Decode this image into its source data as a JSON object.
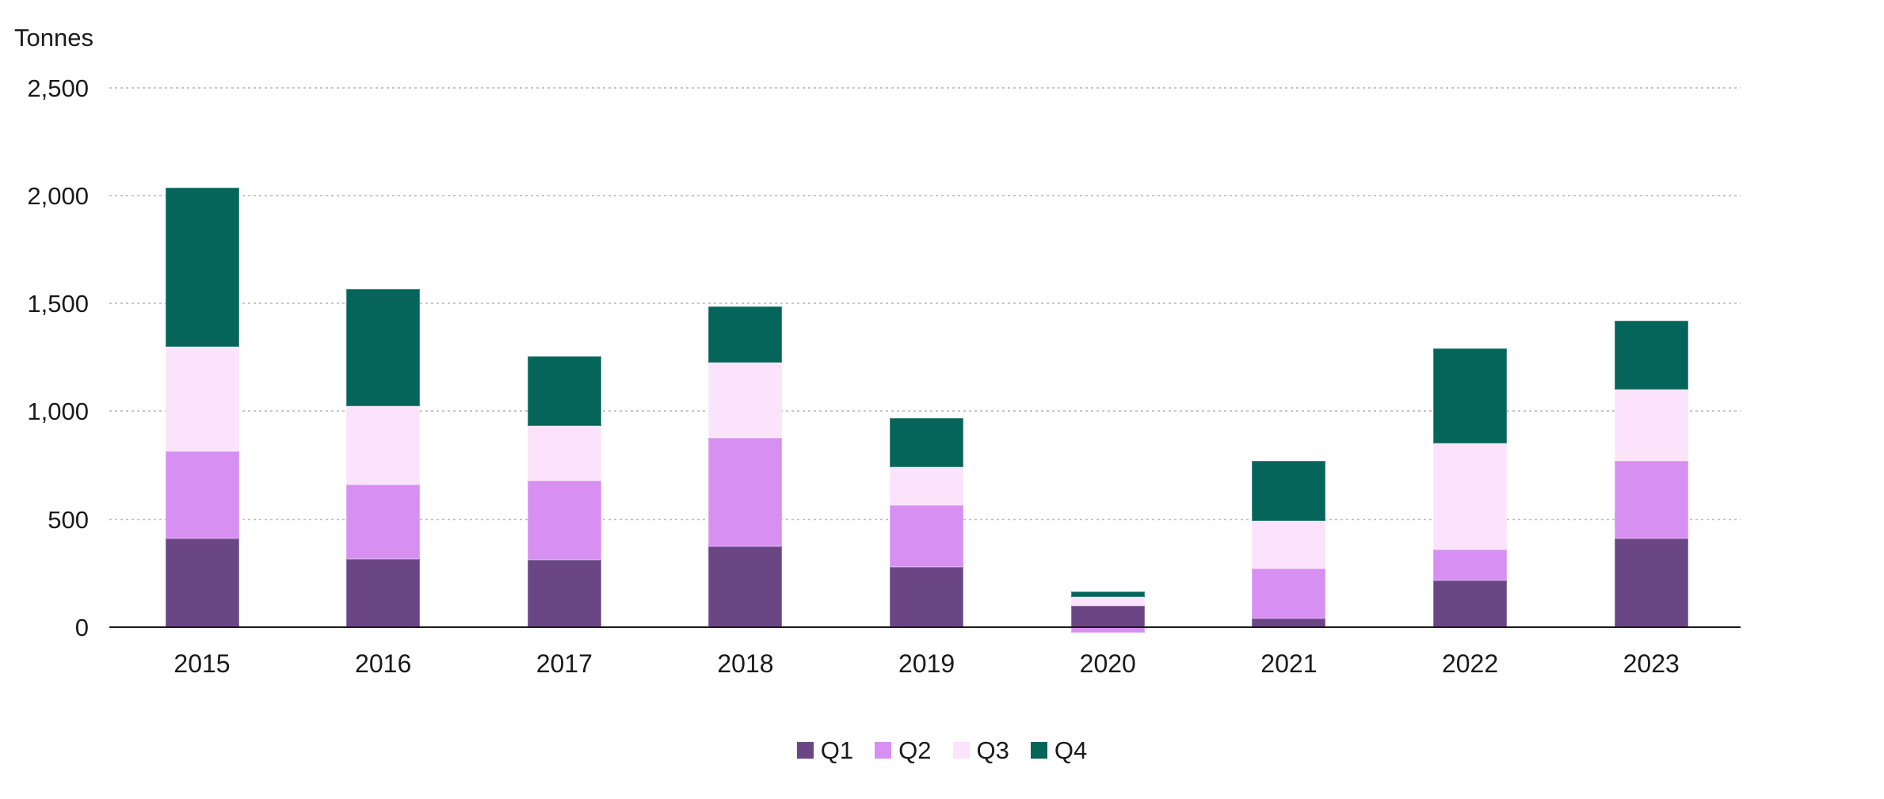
{
  "chart_data": {
    "type": "bar",
    "stacked": true,
    "title": "",
    "ylabel": "Tonnes",
    "xlabel": "",
    "categories": [
      "2015",
      "2016",
      "2017",
      "2018",
      "2019",
      "2020",
      "2021",
      "2022",
      "2023"
    ],
    "series": [
      {
        "name": "Q1",
        "color": "#6B4685",
        "pattern": "solid",
        "values": [
          410,
          315,
          310,
          375,
          280,
          100,
          40,
          215,
          410
        ]
      },
      {
        "name": "Q2",
        "color": "#D78FF2",
        "pattern": "solid",
        "values": [
          405,
          345,
          370,
          500,
          285,
          -25,
          230,
          145,
          360
        ]
      },
      {
        "name": "Q3",
        "color": "#FBE3FB",
        "pattern": "dots",
        "values": [
          485,
          365,
          250,
          350,
          175,
          40,
          220,
          490,
          330
        ]
      },
      {
        "name": "Q4",
        "color": "#05655A",
        "pattern": "solid",
        "values": [
          735,
          540,
          325,
          260,
          230,
          25,
          280,
          440,
          320
        ]
      }
    ],
    "ylim": [
      0,
      2500
    ],
    "ytick_step": 500,
    "ytick_labels": [
      "0",
      "500",
      "1,000",
      "1,500",
      "2,000",
      "2,500"
    ],
    "grid": "horizontal-dotted",
    "legend_position": "bottom-center",
    "notes": "2020 Q2 value is negative and is drawn below the zero axis"
  },
  "colors": {
    "background": "#ffffff",
    "axis": "#1a1a1a",
    "gridline": "#c7c7c7",
    "text": "#1a1a1a"
  }
}
